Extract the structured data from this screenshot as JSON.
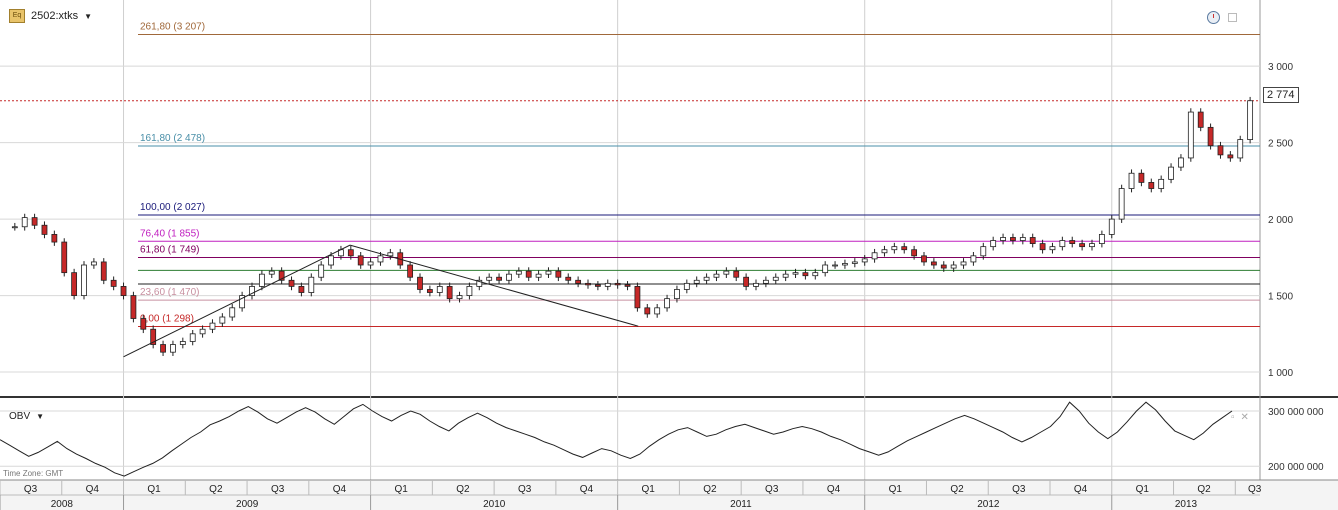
{
  "header": {
    "icon_text": "Eq",
    "symbol": "2502:xtks"
  },
  "obv_header": {
    "label": "OBV"
  },
  "timezone": "Time Zone: GMT",
  "last_price_label": "2 774",
  "colors": {
    "grid": "#d8d8d8",
    "up_candle": "#ffffff",
    "down_candle": "#c62828",
    "candle_outline": "#222222",
    "trend": "#222222"
  },
  "chart_data": [
    {
      "type": "candlestick",
      "title": "2502:xtks",
      "ylim": [
        850,
        3400
      ],
      "y_ticks": [
        {
          "value": 1000,
          "label": "1 000"
        },
        {
          "value": 1500,
          "label": "1 500"
        },
        {
          "value": 2000,
          "label": "2 000"
        },
        {
          "value": 2500,
          "label": "2 500"
        },
        {
          "value": 3000,
          "label": "3 000"
        }
      ],
      "current_price": 2774,
      "fibonacci_levels": [
        {
          "label": "261,80 (3 207)",
          "value": 3207,
          "color": "#a0683a"
        },
        {
          "label": "161,80 (2 478)",
          "value": 2478,
          "color": "#4a8fa8"
        },
        {
          "label": "100,00 (2 027)",
          "value": 2027,
          "color": "#1a1a7a"
        },
        {
          "label": "76,40 (1 855)",
          "value": 1855,
          "color": "#c020c0"
        },
        {
          "label": "61,80 (1 749)",
          "value": 1749,
          "color": "#800060"
        },
        {
          "label": "",
          "value": 1665,
          "color": "#2e7d32"
        },
        {
          "label": "",
          "value": 1576,
          "color": "#222222"
        },
        {
          "label": "23,60 (1 470)",
          "value": 1470,
          "color": "#c890a0"
        },
        {
          "label": "0,00 (1 298)",
          "value": 1298,
          "color": "#c62828"
        }
      ],
      "trendlines": [
        {
          "from": [
            "2009-01",
            1100
          ],
          "to": [
            "2009-12",
            1830
          ]
        },
        {
          "from": [
            "2009-12",
            1830
          ],
          "to": [
            "2011-02",
            1300
          ]
        }
      ],
      "weekly_close": [
        [
          2008.56,
          1950
        ],
        [
          2008.6,
          2010
        ],
        [
          2008.64,
          1960
        ],
        [
          2008.68,
          1900
        ],
        [
          2008.72,
          1850
        ],
        [
          2008.76,
          1650
        ],
        [
          2008.8,
          1500
        ],
        [
          2008.84,
          1700
        ],
        [
          2008.88,
          1720
        ],
        [
          2008.92,
          1600
        ],
        [
          2008.96,
          1560
        ],
        [
          2009.0,
          1500
        ],
        [
          2009.04,
          1350
        ],
        [
          2009.08,
          1280
        ],
        [
          2009.12,
          1180
        ],
        [
          2009.16,
          1130
        ],
        [
          2009.2,
          1180
        ],
        [
          2009.24,
          1200
        ],
        [
          2009.28,
          1250
        ],
        [
          2009.32,
          1280
        ],
        [
          2009.36,
          1320
        ],
        [
          2009.4,
          1360
        ],
        [
          2009.44,
          1420
        ],
        [
          2009.48,
          1500
        ],
        [
          2009.52,
          1560
        ],
        [
          2009.56,
          1640
        ],
        [
          2009.6,
          1660
        ],
        [
          2009.64,
          1600
        ],
        [
          2009.68,
          1560
        ],
        [
          2009.72,
          1520
        ],
        [
          2009.76,
          1620
        ],
        [
          2009.8,
          1700
        ],
        [
          2009.84,
          1760
        ],
        [
          2009.88,
          1800
        ],
        [
          2009.92,
          1760
        ],
        [
          2009.96,
          1700
        ],
        [
          2010.0,
          1720
        ],
        [
          2010.04,
          1760
        ],
        [
          2010.08,
          1780
        ],
        [
          2010.12,
          1700
        ],
        [
          2010.16,
          1620
        ],
        [
          2010.2,
          1540
        ],
        [
          2010.24,
          1520
        ],
        [
          2010.28,
          1560
        ],
        [
          2010.32,
          1480
        ],
        [
          2010.36,
          1500
        ],
        [
          2010.4,
          1560
        ],
        [
          2010.44,
          1600
        ],
        [
          2010.48,
          1620
        ],
        [
          2010.52,
          1600
        ],
        [
          2010.56,
          1640
        ],
        [
          2010.6,
          1660
        ],
        [
          2010.64,
          1620
        ],
        [
          2010.68,
          1640
        ],
        [
          2010.72,
          1660
        ],
        [
          2010.76,
          1620
        ],
        [
          2010.8,
          1600
        ],
        [
          2010.84,
          1580
        ],
        [
          2010.88,
          1570
        ],
        [
          2010.92,
          1560
        ],
        [
          2010.96,
          1580
        ],
        [
          2011.0,
          1570
        ],
        [
          2011.04,
          1560
        ],
        [
          2011.08,
          1420
        ],
        [
          2011.12,
          1380
        ],
        [
          2011.16,
          1420
        ],
        [
          2011.2,
          1480
        ],
        [
          2011.24,
          1540
        ],
        [
          2011.28,
          1580
        ],
        [
          2011.32,
          1600
        ],
        [
          2011.36,
          1620
        ],
        [
          2011.4,
          1640
        ],
        [
          2011.44,
          1660
        ],
        [
          2011.48,
          1620
        ],
        [
          2011.52,
          1560
        ],
        [
          2011.56,
          1580
        ],
        [
          2011.6,
          1600
        ],
        [
          2011.64,
          1620
        ],
        [
          2011.68,
          1640
        ],
        [
          2011.72,
          1650
        ],
        [
          2011.76,
          1630
        ],
        [
          2011.8,
          1650
        ],
        [
          2011.84,
          1700
        ],
        [
          2011.88,
          1700
        ],
        [
          2011.92,
          1710
        ],
        [
          2011.96,
          1720
        ],
        [
          2012.0,
          1740
        ],
        [
          2012.04,
          1780
        ],
        [
          2012.08,
          1800
        ],
        [
          2012.12,
          1820
        ],
        [
          2012.16,
          1800
        ],
        [
          2012.2,
          1760
        ],
        [
          2012.24,
          1720
        ],
        [
          2012.28,
          1700
        ],
        [
          2012.32,
          1680
        ],
        [
          2012.36,
          1700
        ],
        [
          2012.4,
          1720
        ],
        [
          2012.44,
          1760
        ],
        [
          2012.48,
          1820
        ],
        [
          2012.52,
          1860
        ],
        [
          2012.56,
          1880
        ],
        [
          2012.6,
          1860
        ],
        [
          2012.64,
          1880
        ],
        [
          2012.68,
          1840
        ],
        [
          2012.72,
          1800
        ],
        [
          2012.76,
          1820
        ],
        [
          2012.8,
          1860
        ],
        [
          2012.84,
          1840
        ],
        [
          2012.88,
          1820
        ],
        [
          2012.92,
          1840
        ],
        [
          2012.96,
          1900
        ],
        [
          2013.0,
          2000
        ],
        [
          2013.04,
          2200
        ],
        [
          2013.08,
          2300
        ],
        [
          2013.12,
          2240
        ],
        [
          2013.16,
          2200
        ],
        [
          2013.2,
          2260
        ],
        [
          2013.24,
          2340
        ],
        [
          2013.28,
          2400
        ],
        [
          2013.32,
          2700
        ],
        [
          2013.36,
          2600
        ],
        [
          2013.4,
          2480
        ],
        [
          2013.44,
          2420
        ],
        [
          2013.48,
          2400
        ],
        [
          2013.52,
          2520
        ],
        [
          2013.56,
          2774
        ]
      ],
      "x_quarters": [
        "Q3",
        "Q4",
        "Q1",
        "Q2",
        "Q3",
        "Q4",
        "Q1",
        "Q2",
        "Q3",
        "Q4",
        "Q1",
        "Q2",
        "Q3",
        "Q4",
        "Q1",
        "Q2",
        "Q3",
        "Q4",
        "Q1",
        "Q2",
        "Q3"
      ],
      "x_years": [
        "2008",
        "2009",
        "2010",
        "2011",
        "2012",
        "2013"
      ]
    },
    {
      "type": "line",
      "title": "OBV",
      "ylim": [
        175000000,
        320000000
      ],
      "y_ticks": [
        {
          "value": 200000000,
          "label": "200 000 000"
        },
        {
          "value": 300000000,
          "label": "300 000 000"
        }
      ],
      "values": [
        248,
        238,
        228,
        218,
        225,
        235,
        245,
        232,
        222,
        214,
        205,
        198,
        188,
        182,
        190,
        198,
        205,
        215,
        228,
        240,
        252,
        262,
        275,
        282,
        290,
        300,
        308,
        298,
        286,
        278,
        288,
        298,
        306,
        298,
        286,
        276,
        290,
        304,
        312,
        300,
        290,
        282,
        292,
        300,
        294,
        282,
        272,
        264,
        278,
        288,
        296,
        288,
        278,
        270,
        264,
        258,
        252,
        244,
        238,
        230,
        222,
        216,
        224,
        232,
        228,
        220,
        214,
        222,
        236,
        248,
        258,
        266,
        270,
        262,
        254,
        258,
        266,
        272,
        276,
        270,
        264,
        258,
        262,
        268,
        272,
        268,
        262,
        254,
        248,
        240,
        232,
        226,
        220,
        226,
        236,
        246,
        254,
        262,
        270,
        278,
        286,
        292,
        286,
        278,
        270,
        262,
        252,
        244,
        252,
        262,
        272,
        290,
        316,
        300,
        278,
        262,
        250,
        262,
        280,
        300,
        316,
        302,
        282,
        264,
        256,
        248,
        260,
        276,
        288,
        300
      ]
    }
  ]
}
